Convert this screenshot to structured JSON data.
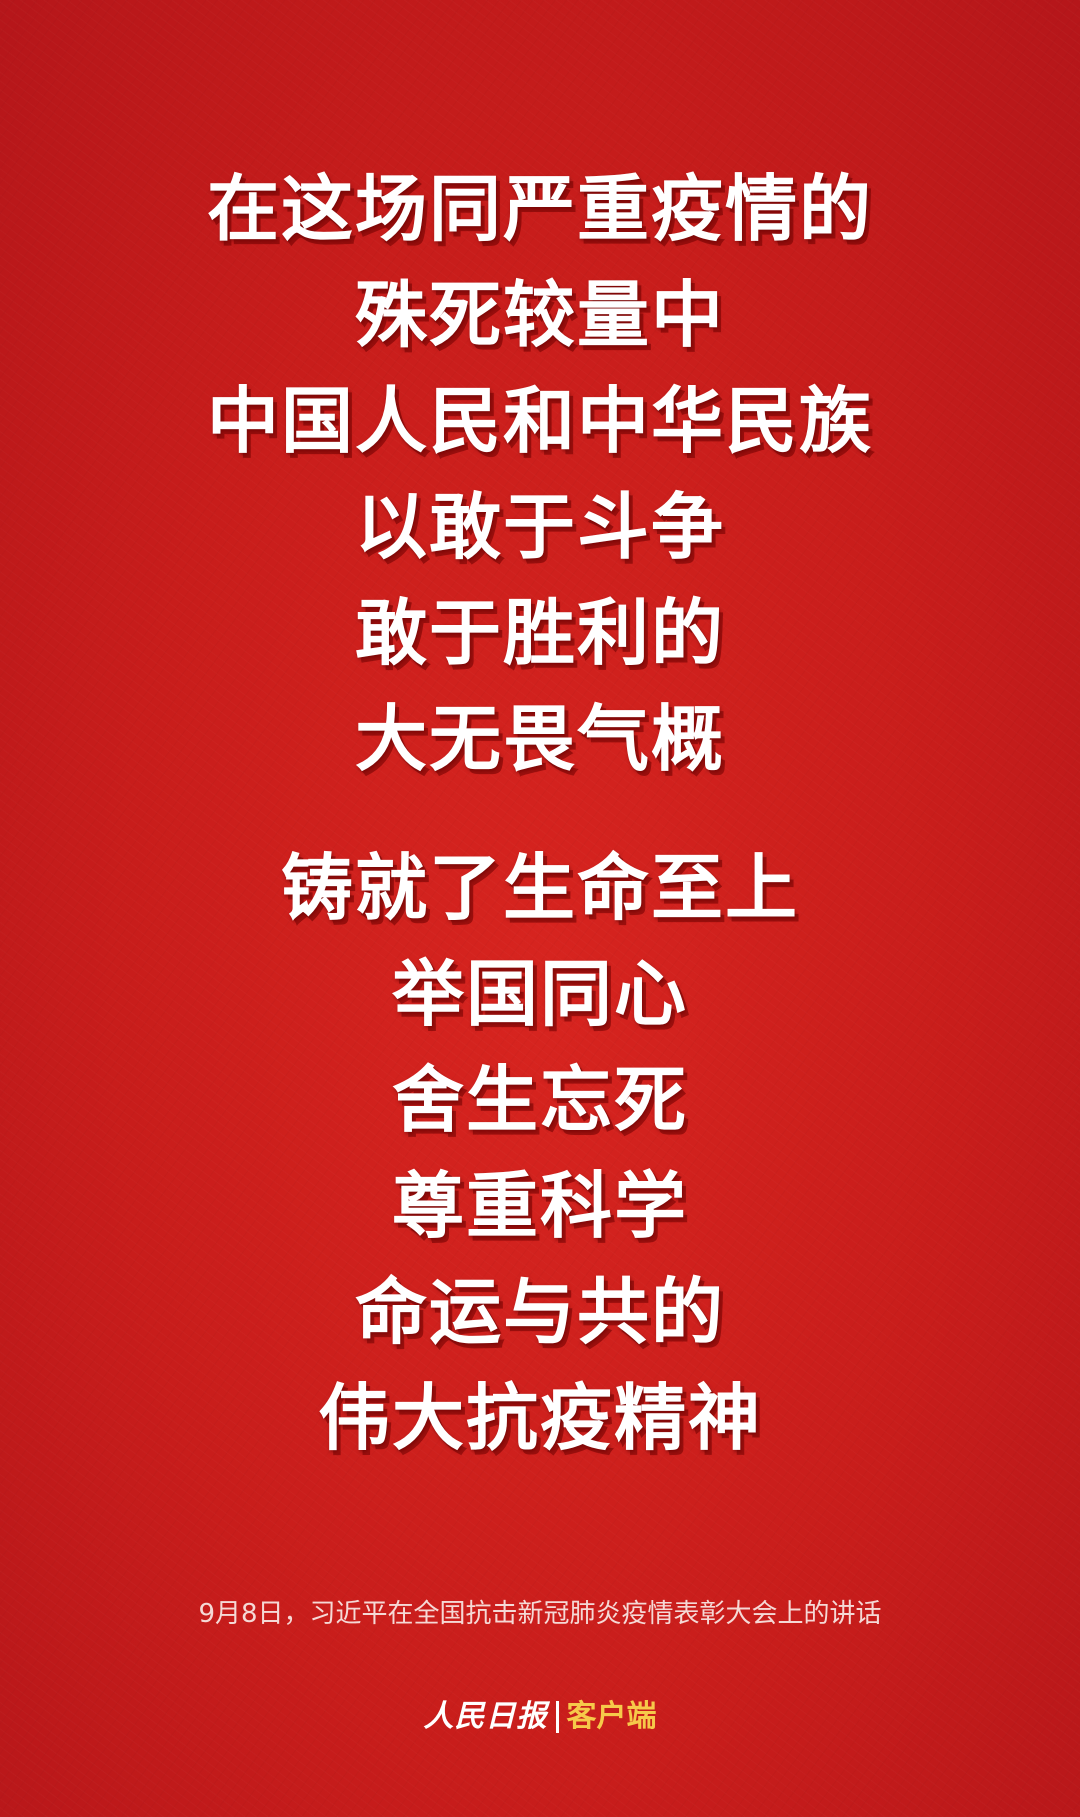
{
  "poster": {
    "lines": [
      "在这场同严重疫情的",
      "殊死较量中",
      "中国人民和中华民族",
      "以敢于斗争",
      "敢于胜利的",
      "大无畏气概",
      "铸就了生命至上",
      "举国同心",
      "舍生忘死",
      "尊重科学",
      "命运与共的",
      "伟大抗疫精神"
    ],
    "caption": "9月8日，习近平在全国抗击新冠肺炎疫情表彰大会上的讲话"
  },
  "footer": {
    "brand": "人民日报",
    "client_label": "客户端"
  },
  "colors": {
    "background": "#c81d1b",
    "text": "#ffffff",
    "client_accent": "#f6c94a"
  }
}
